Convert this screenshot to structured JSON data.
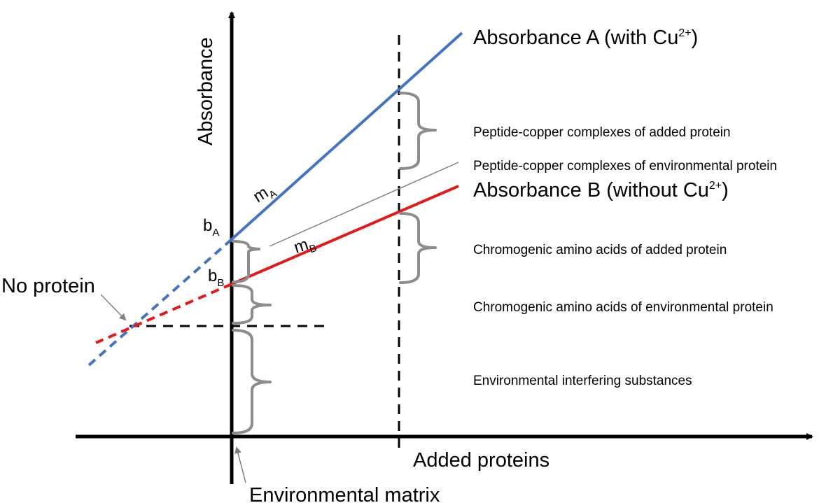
{
  "diagram": {
    "y_axis_label": "Absorbance",
    "x_axis_label": "Added proteins",
    "origin_label": "Environmental matrix",
    "intersection_label": "No protein",
    "line_a": {
      "label_prefix": "Absorbance A (with Cu",
      "label_sup": "2+",
      "label_suffix": ")",
      "color": "#4472c4",
      "slope_symbol": "m",
      "slope_sub": "A",
      "intercept_symbol": "b",
      "intercept_sub": "A"
    },
    "line_b": {
      "label_prefix": "Absorbance B (without Cu",
      "label_sup": "2+",
      "label_suffix": ")",
      "color": "#e31a1c",
      "slope_symbol": "m",
      "slope_sub": "B",
      "intercept_symbol": "b",
      "intercept_sub": "B"
    },
    "components": [
      "Peptide-copper complexes of added protein",
      "Peptide-copper complexes of environmental protein",
      "Chromogenic amino acids of added protein",
      "Chromogenic amino acids of environmental protein",
      "Environmental interfering substances"
    ],
    "colors": {
      "axis": "#000000",
      "brace": "#8c8c8c",
      "pointer": "#808080"
    }
  }
}
